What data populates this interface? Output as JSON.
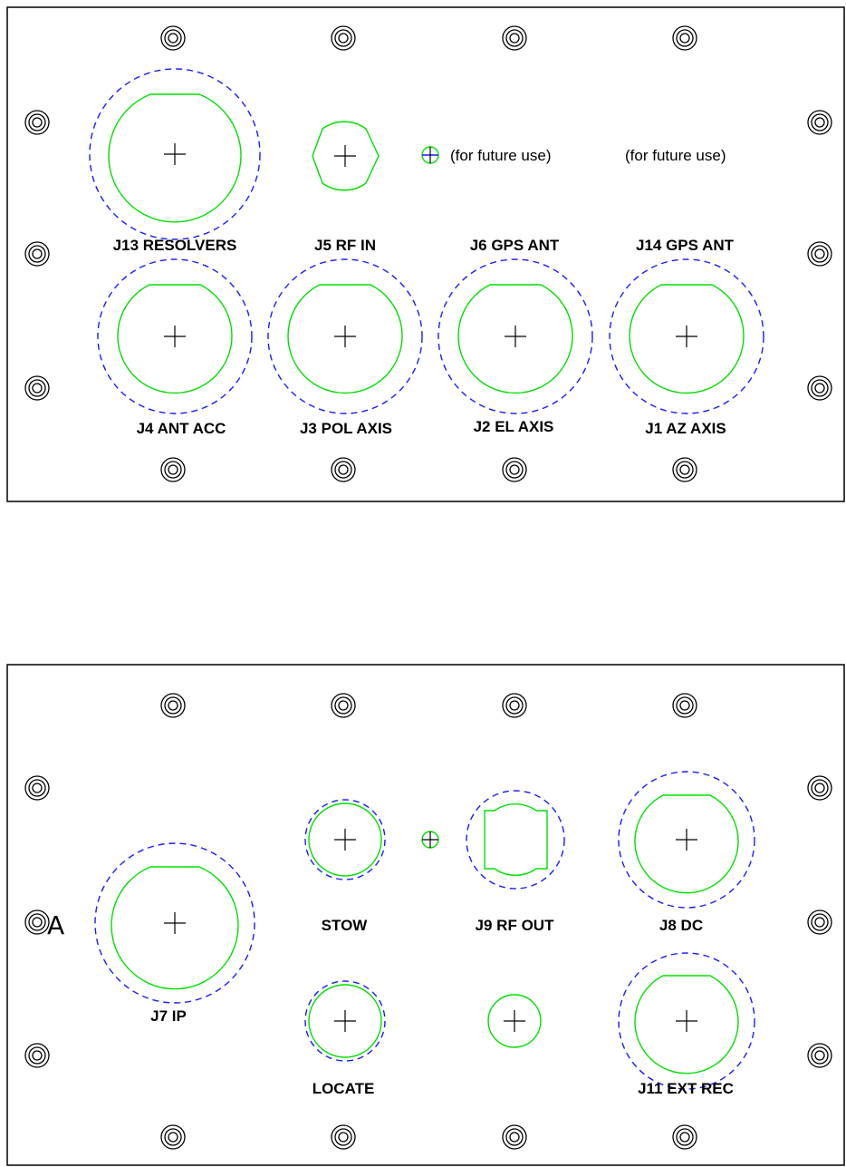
{
  "panel_top": {
    "connectors": {
      "j13": "J13 RESOLVERS",
      "j5": "J5 RF IN",
      "j6": "J6 GPS ANT",
      "j14": "J14 GPS ANT",
      "j4": "J4 ANT ACC",
      "j3": "J3 POL AXIS",
      "j2": "J2 EL AXIS",
      "j1": "J1 AZ AXIS"
    },
    "notes": {
      "future_1": "(for future use)",
      "future_2": "(for future use)"
    }
  },
  "panel_bottom": {
    "connectors": {
      "j7": "J7 IP",
      "stow": "STOW",
      "locate": "LOCATE",
      "j9": "J9 RF OUT",
      "j8": "J8 DC",
      "j11": "J11 EXT REC"
    },
    "marker": "A"
  },
  "colors": {
    "panel_outline": "#000000",
    "connector_body": "#00e000",
    "clearance_outline": "#1a1aff"
  }
}
